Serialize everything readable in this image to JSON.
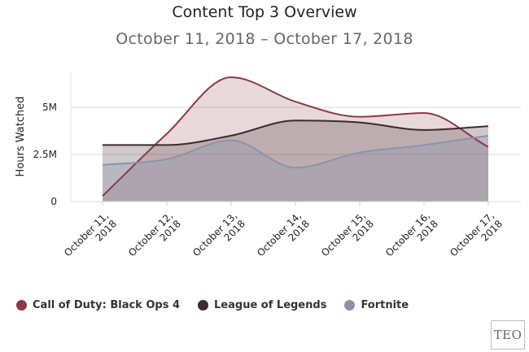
{
  "chart_data": {
    "type": "area",
    "title": "Content Top 3 Overview",
    "subtitle": "October 11, 2018 – October 17, 2018",
    "ylabel": "Hours Watched",
    "xlabel": "",
    "ylim": [
      0,
      6900000
    ],
    "yticks": [
      {
        "value": 0,
        "label": "0"
      },
      {
        "value": 2500000,
        "label": "2.5M"
      },
      {
        "value": 5000000,
        "label": "5M"
      }
    ],
    "categories": [
      [
        "October 11,",
        "2018"
      ],
      [
        "October 12,",
        "2018"
      ],
      [
        "October 13,",
        "2018"
      ],
      [
        "October 14,",
        "2018"
      ],
      [
        "October 15,",
        "2018"
      ],
      [
        "October 16,",
        "2018"
      ],
      [
        "October 17,",
        "2018"
      ]
    ],
    "series": [
      {
        "name": "Call of Duty: Black Ops 4",
        "color": "#8b3a48",
        "fill": "rgba(139,58,72,0.2)",
        "values": [
          300000,
          3600000,
          6600000,
          5300000,
          4500000,
          4700000,
          2900000
        ]
      },
      {
        "name": "League of Legends",
        "color": "#3c2a30",
        "fill": "rgba(60,42,48,0.25)",
        "values": [
          3000000,
          3000000,
          3500000,
          4300000,
          4200000,
          3800000,
          4000000
        ]
      },
      {
        "name": "Fortnite",
        "color": "#8a93ad",
        "fill": "rgba(138,147,173,0.32)",
        "values": [
          1950000,
          2250000,
          3250000,
          1800000,
          2600000,
          3000000,
          3500000
        ]
      }
    ],
    "grid": true,
    "legend_position": "bottom-left"
  },
  "watermark": "TEO"
}
